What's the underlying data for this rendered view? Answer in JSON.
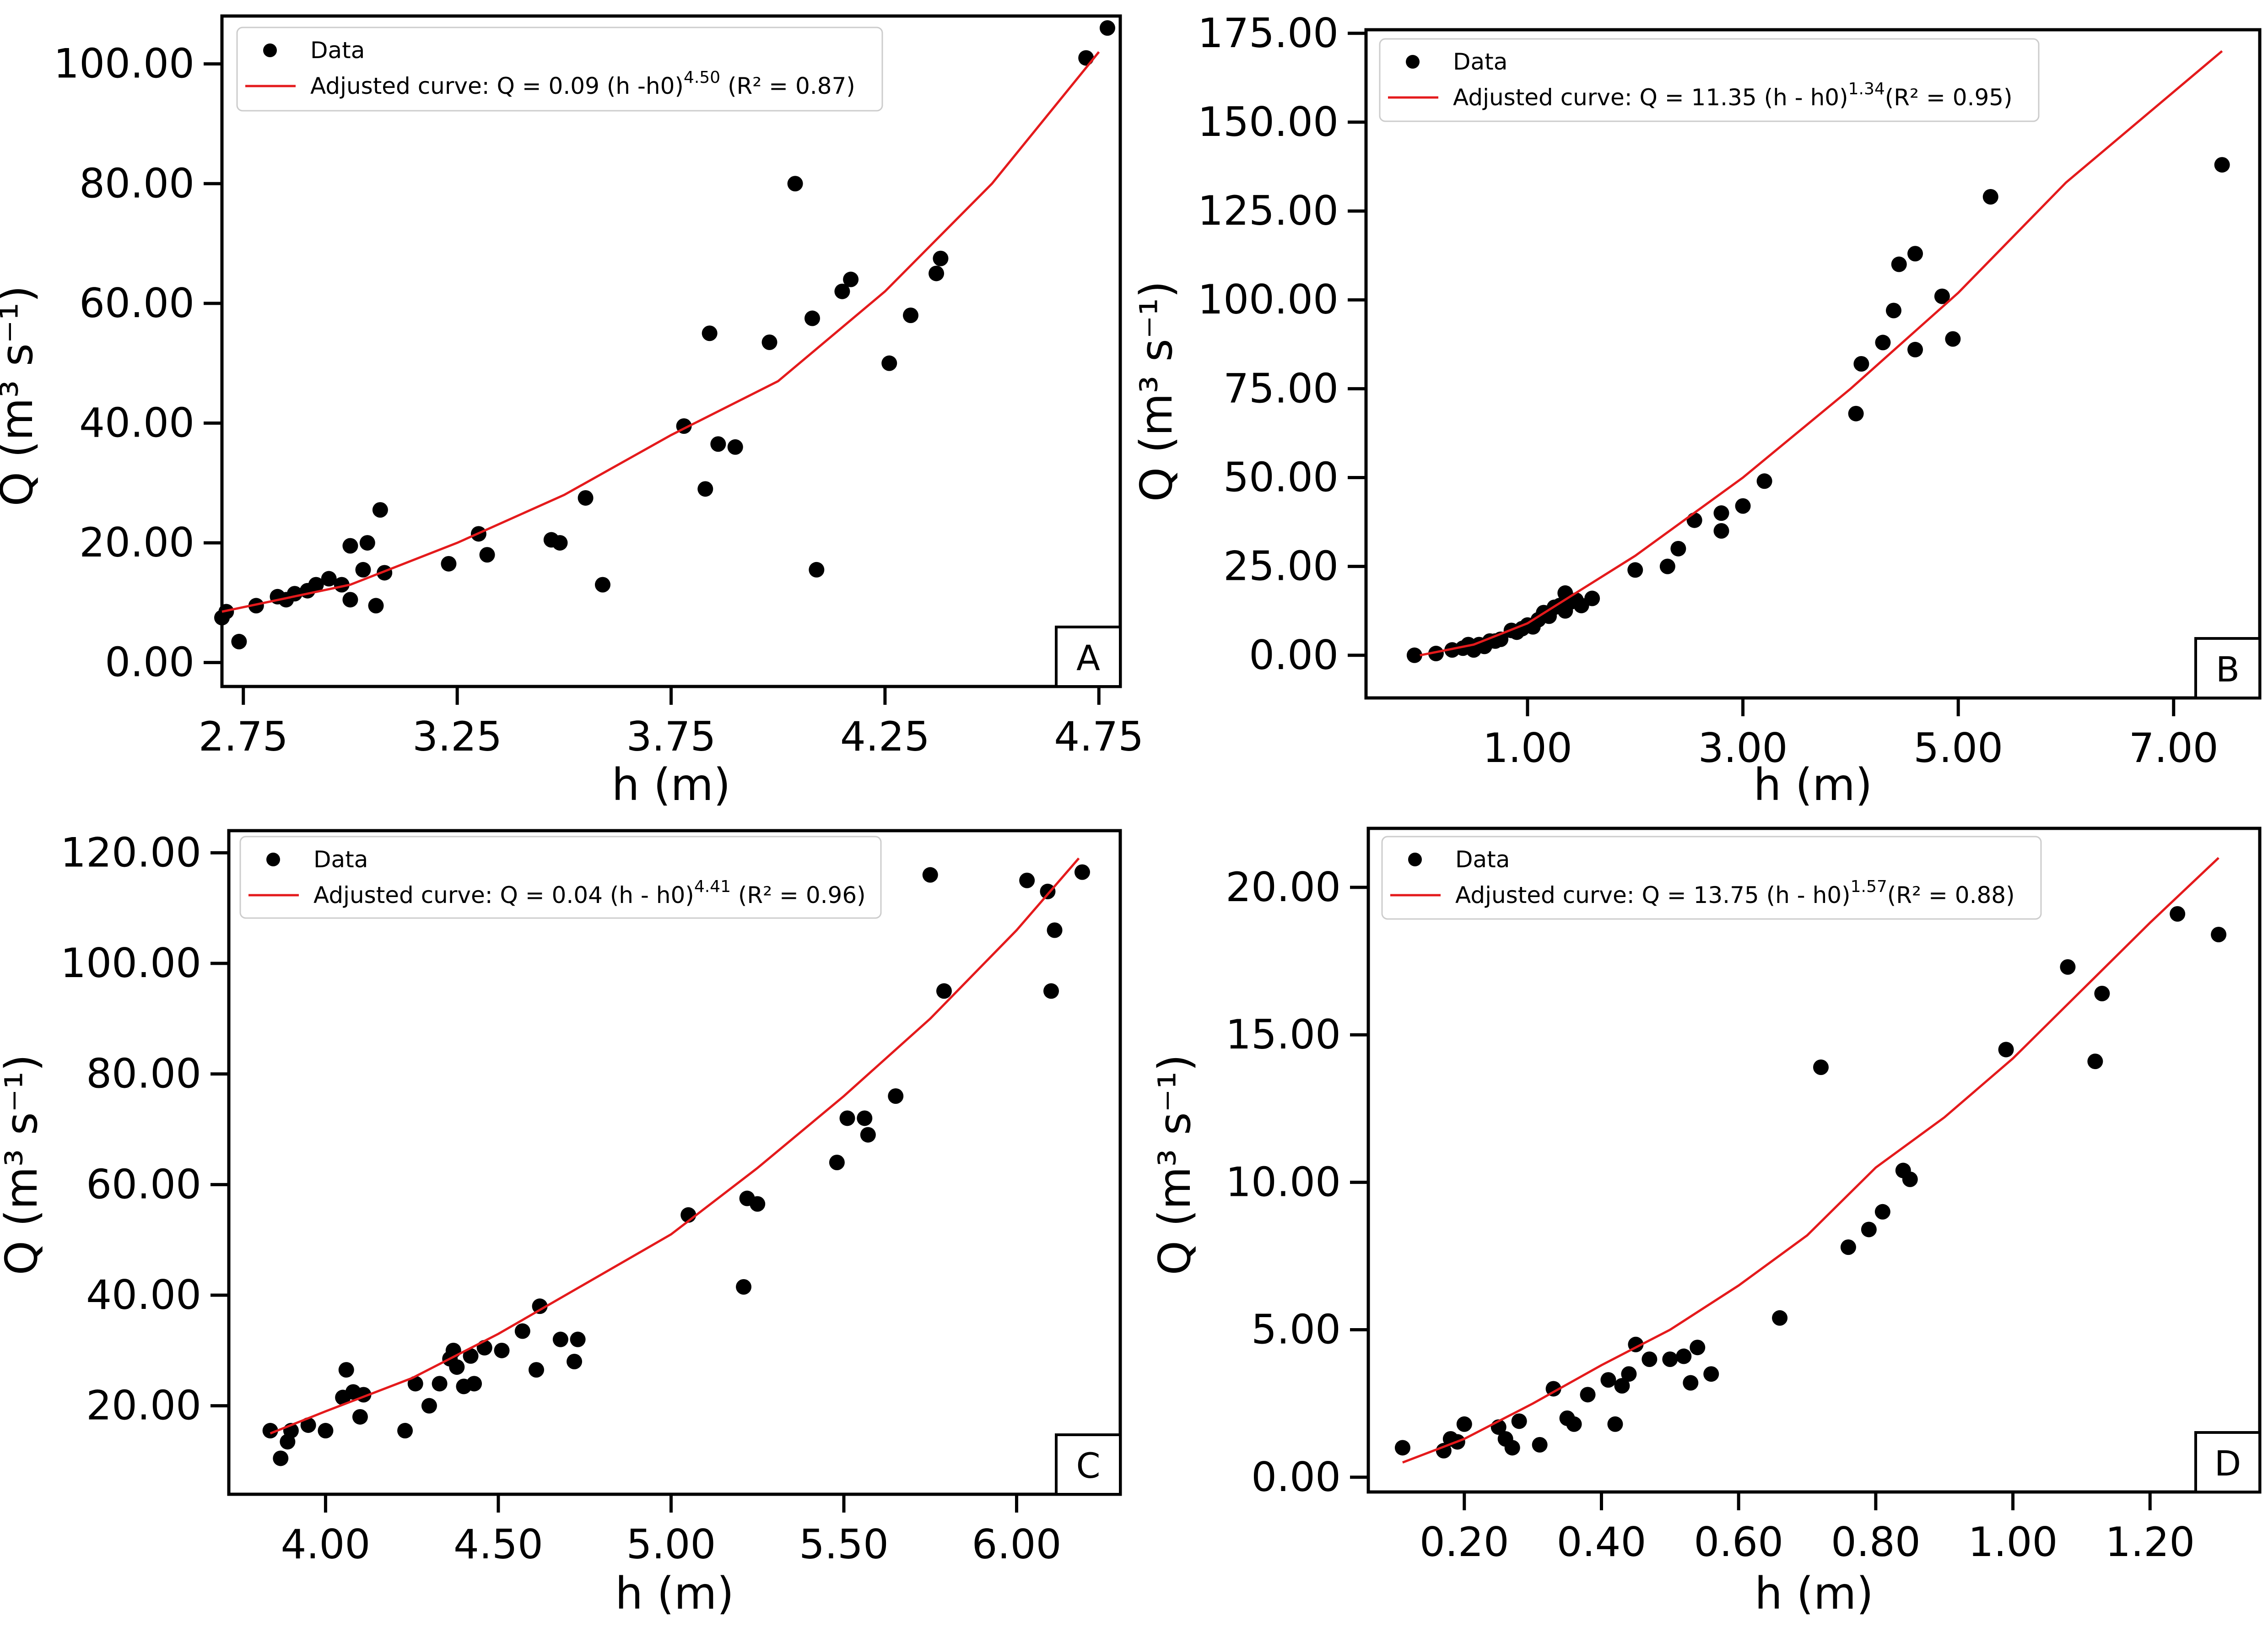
{
  "chart_data": [
    {
      "panel": "A",
      "type": "scatter",
      "xlabel": "h (m)",
      "ylabel": "Q (m³ s⁻¹)",
      "xlim": [
        2.7,
        4.8
      ],
      "ylim": [
        -4,
        108
      ],
      "xticks": [
        2.75,
        3.25,
        3.75,
        4.25,
        4.75
      ],
      "yticks": [
        0,
        20,
        40,
        60,
        80,
        100
      ],
      "legend": {
        "position": "top-left",
        "data_label": "Data",
        "curve_pre": "Adjusted curve: Q = 0.09 (h -h0)",
        "curve_exp": "4.50",
        "curve_post": " (R² = 0.87)"
      },
      "series": [
        {
          "name": "Data",
          "kind": "scatter",
          "points": [
            [
              2.7,
              7.5
            ],
            [
              2.71,
              8.5
            ],
            [
              2.74,
              3.5
            ],
            [
              2.78,
              9.5
            ],
            [
              2.83,
              11
            ],
            [
              2.85,
              10.5
            ],
            [
              2.87,
              11.5
            ],
            [
              2.9,
              12
            ],
            [
              2.92,
              13
            ],
            [
              2.95,
              14
            ],
            [
              2.98,
              13
            ],
            [
              3.0,
              19.5
            ],
            [
              3.0,
              10.5
            ],
            [
              3.03,
              15.5
            ],
            [
              3.04,
              20
            ],
            [
              3.06,
              9.5
            ],
            [
              3.07,
              25.5
            ],
            [
              3.08,
              15
            ],
            [
              3.23,
              16.5
            ],
            [
              3.3,
              21.5
            ],
            [
              3.32,
              18
            ],
            [
              3.47,
              20.5
            ],
            [
              3.49,
              20
            ],
            [
              3.55,
              27.5
            ],
            [
              3.59,
              13
            ],
            [
              3.78,
              39.5
            ],
            [
              3.83,
              29
            ],
            [
              3.84,
              55
            ],
            [
              3.86,
              36.5
            ],
            [
              3.9,
              36
            ],
            [
              3.98,
              53.5
            ],
            [
              4.04,
              80
            ],
            [
              4.08,
              57.5
            ],
            [
              4.09,
              15.5
            ],
            [
              4.15,
              62
            ],
            [
              4.17,
              64
            ],
            [
              4.26,
              50
            ],
            [
              4.31,
              58
            ],
            [
              4.37,
              65
            ],
            [
              4.38,
              67.5
            ],
            [
              4.72,
              101
            ],
            [
              4.77,
              106
            ]
          ]
        },
        {
          "name": "Adjusted curve",
          "kind": "line",
          "points": [
            [
              2.7,
              8.5
            ],
            [
              3.0,
              13
            ],
            [
              3.25,
              20
            ],
            [
              3.5,
              28
            ],
            [
              3.75,
              38
            ],
            [
              4.0,
              47
            ],
            [
              4.25,
              62
            ],
            [
              4.5,
              80
            ],
            [
              4.75,
              102
            ]
          ]
        }
      ]
    },
    {
      "panel": "B",
      "type": "scatter",
      "xlabel": "h (m)",
      "ylabel": "Q (m³ s⁻¹)",
      "xlim": [
        -0.5,
        7.8
      ],
      "ylim": [
        -12,
        176
      ],
      "xticks": [
        1.0,
        3.0,
        5.0,
        7.0
      ],
      "yticks": [
        0,
        25,
        50,
        75,
        100,
        125,
        150,
        175
      ],
      "legend": {
        "position": "top-left",
        "data_label": "Data",
        "curve_pre": "Adjusted curve: Q = 11.35 (h - h0)",
        "curve_exp": "1.34",
        "curve_post": "(R² = 0.95)"
      },
      "series": [
        {
          "name": "Data",
          "kind": "scatter",
          "points": [
            [
              -0.05,
              0
            ],
            [
              0.15,
              0.5
            ],
            [
              0.3,
              1.5
            ],
            [
              0.4,
              2
            ],
            [
              0.45,
              3
            ],
            [
              0.5,
              1.5
            ],
            [
              0.55,
              3
            ],
            [
              0.6,
              2.5
            ],
            [
              0.65,
              4
            ],
            [
              0.7,
              4
            ],
            [
              0.75,
              4.5
            ],
            [
              0.85,
              7
            ],
            [
              0.9,
              6.5
            ],
            [
              0.95,
              7.5
            ],
            [
              1.0,
              8.5
            ],
            [
              1.05,
              8
            ],
            [
              1.1,
              10
            ],
            [
              1.15,
              12
            ],
            [
              1.2,
              11
            ],
            [
              1.25,
              13.5
            ],
            [
              1.3,
              14
            ],
            [
              1.35,
              17.5
            ],
            [
              1.35,
              12.5
            ],
            [
              1.4,
              15
            ],
            [
              1.45,
              15.5
            ],
            [
              1.5,
              14
            ],
            [
              1.6,
              16
            ],
            [
              2.0,
              24
            ],
            [
              2.3,
              25
            ],
            [
              2.4,
              30
            ],
            [
              2.55,
              38
            ],
            [
              2.8,
              40
            ],
            [
              2.8,
              35
            ],
            [
              3.0,
              42
            ],
            [
              3.2,
              49
            ],
            [
              4.05,
              68
            ],
            [
              4.1,
              82
            ],
            [
              4.3,
              88
            ],
            [
              4.4,
              97
            ],
            [
              4.45,
              110
            ],
            [
              4.6,
              113
            ],
            [
              4.6,
              86
            ],
            [
              4.85,
              101
            ],
            [
              4.95,
              89
            ],
            [
              5.3,
              129
            ],
            [
              7.45,
              138
            ]
          ]
        },
        {
          "name": "Adjusted curve",
          "kind": "line",
          "points": [
            [
              0,
              0
            ],
            [
              0.5,
              3
            ],
            [
              1.0,
              9
            ],
            [
              2.0,
              28
            ],
            [
              3.0,
              50
            ],
            [
              4.0,
              75
            ],
            [
              5.0,
              102
            ],
            [
              6.0,
              133
            ],
            [
              7.45,
              170
            ]
          ]
        }
      ]
    },
    {
      "panel": "C",
      "type": "scatter",
      "xlabel": "h (m)",
      "ylabel": "Q (m³ s⁻¹)",
      "xlim": [
        3.72,
        6.3
      ],
      "ylim": [
        4,
        124
      ],
      "xticks": [
        4.0,
        4.5,
        5.0,
        5.5,
        6.0
      ],
      "yticks": [
        20,
        40,
        60,
        80,
        100,
        120
      ],
      "legend": {
        "position": "top-left",
        "data_label": "Data",
        "curve_pre": "Adjusted curve: Q = 0.04 (h - h0)",
        "curve_exp": "4.41",
        "curve_post": " (R² = 0.96)"
      },
      "series": [
        {
          "name": "Data",
          "kind": "scatter",
          "points": [
            [
              3.84,
              15.5
            ],
            [
              3.87,
              10.5
            ],
            [
              3.89,
              13.5
            ],
            [
              3.9,
              15.5
            ],
            [
              3.95,
              16.5
            ],
            [
              4.0,
              15.5
            ],
            [
              4.05,
              21.5
            ],
            [
              4.06,
              26.5
            ],
            [
              4.08,
              22.5
            ],
            [
              4.1,
              18
            ],
            [
              4.11,
              22
            ],
            [
              4.23,
              15.5
            ],
            [
              4.26,
              24
            ],
            [
              4.3,
              20
            ],
            [
              4.33,
              24
            ],
            [
              4.36,
              28.5
            ],
            [
              4.37,
              30
            ],
            [
              4.38,
              27
            ],
            [
              4.4,
              23.5
            ],
            [
              4.42,
              29
            ],
            [
              4.43,
              24
            ],
            [
              4.46,
              30.5
            ],
            [
              4.51,
              30
            ],
            [
              4.57,
              33.5
            ],
            [
              4.61,
              26.5
            ],
            [
              4.62,
              38
            ],
            [
              4.68,
              32
            ],
            [
              4.72,
              28
            ],
            [
              4.73,
              32
            ],
            [
              5.05,
              54.5
            ],
            [
              5.21,
              41.5
            ],
            [
              5.22,
              57.5
            ],
            [
              5.25,
              56.5
            ],
            [
              5.48,
              64
            ],
            [
              5.51,
              72
            ],
            [
              5.56,
              72
            ],
            [
              5.57,
              69
            ],
            [
              5.65,
              76
            ],
            [
              5.75,
              116
            ],
            [
              5.79,
              95
            ],
            [
              6.03,
              115
            ],
            [
              6.09,
              113
            ],
            [
              6.1,
              95
            ],
            [
              6.11,
              106
            ],
            [
              6.19,
              116.5
            ]
          ]
        },
        {
          "name": "Adjusted curve",
          "kind": "line",
          "points": [
            [
              3.84,
              15
            ],
            [
              4.0,
              19
            ],
            [
              4.25,
              25
            ],
            [
              4.5,
              33
            ],
            [
              4.75,
              42
            ],
            [
              5.0,
              51
            ],
            [
              5.25,
              63
            ],
            [
              5.5,
              76
            ],
            [
              5.75,
              90
            ],
            [
              6.0,
              106
            ],
            [
              6.18,
              119
            ]
          ]
        }
      ]
    },
    {
      "panel": "D",
      "type": "scatter",
      "xlabel": "h (m)",
      "ylabel": "Q (m³ s⁻¹)",
      "xlim": [
        0.06,
        1.36
      ],
      "ylim": [
        -0.5,
        22
      ],
      "xticks": [
        0.2,
        0.4,
        0.6,
        0.8,
        1.0,
        1.2
      ],
      "yticks": [
        0,
        5,
        10,
        15,
        20
      ],
      "legend": {
        "position": "top-left",
        "data_label": "Data",
        "curve_pre": "Adjusted curve: Q = 13.75 (h - h0)",
        "curve_exp": "1.57",
        "curve_post": "(R² = 0.88)"
      },
      "series": [
        {
          "name": "Data",
          "kind": "scatter",
          "points": [
            [
              0.11,
              1
            ],
            [
              0.17,
              0.9
            ],
            [
              0.18,
              1.3
            ],
            [
              0.19,
              1.2
            ],
            [
              0.2,
              1.8
            ],
            [
              0.25,
              1.7
            ],
            [
              0.26,
              1.3
            ],
            [
              0.27,
              1
            ],
            [
              0.28,
              1.9
            ],
            [
              0.31,
              1.1
            ],
            [
              0.33,
              3
            ],
            [
              0.35,
              2
            ],
            [
              0.36,
              1.8
            ],
            [
              0.38,
              2.8
            ],
            [
              0.41,
              3.3
            ],
            [
              0.42,
              1.8
            ],
            [
              0.43,
              3.1
            ],
            [
              0.44,
              3.5
            ],
            [
              0.45,
              4.5
            ],
            [
              0.47,
              4
            ],
            [
              0.5,
              4
            ],
            [
              0.52,
              4.1
            ],
            [
              0.53,
              3.2
            ],
            [
              0.54,
              4.4
            ],
            [
              0.56,
              3.5
            ],
            [
              0.66,
              5.4
            ],
            [
              0.72,
              13.9
            ],
            [
              0.76,
              7.8
            ],
            [
              0.79,
              8.4
            ],
            [
              0.81,
              9
            ],
            [
              0.84,
              10.4
            ],
            [
              0.85,
              10.1
            ],
            [
              0.99,
              14.5
            ],
            [
              1.08,
              17.3
            ],
            [
              1.12,
              14.1
            ],
            [
              1.13,
              16.4
            ],
            [
              1.24,
              19.1
            ],
            [
              1.3,
              18.4
            ]
          ]
        },
        {
          "name": "Adjusted curve",
          "kind": "line",
          "points": [
            [
              0.11,
              0.5
            ],
            [
              0.2,
              1.3
            ],
            [
              0.3,
              2.5
            ],
            [
              0.4,
              3.8
            ],
            [
              0.5,
              5
            ],
            [
              0.6,
              6.5
            ],
            [
              0.7,
              8.2
            ],
            [
              0.8,
              10.5
            ],
            [
              0.9,
              12.2
            ],
            [
              1.0,
              14.2
            ],
            [
              1.1,
              16.5
            ],
            [
              1.2,
              18.8
            ],
            [
              1.3,
              21
            ]
          ]
        }
      ]
    }
  ]
}
